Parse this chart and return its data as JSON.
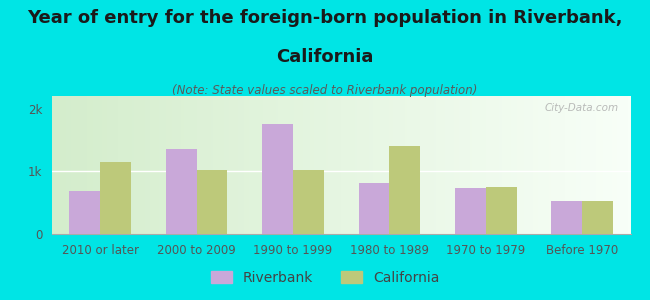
{
  "title_line1": "Year of entry for the foreign-born population in Riverbank,",
  "title_line2": "California",
  "subtitle": "(Note: State values scaled to Riverbank population)",
  "categories": [
    "2010 or later",
    "2000 to 2009",
    "1990 to 1999",
    "1980 to 1989",
    "1970 to 1979",
    "Before 1970"
  ],
  "riverbank_values": [
    680,
    1350,
    1750,
    820,
    730,
    520
  ],
  "california_values": [
    1150,
    1020,
    1020,
    1400,
    750,
    530
  ],
  "riverbank_color": "#c9a8d9",
  "california_color": "#bdc97a",
  "bar_width": 0.32,
  "ylim": [
    0,
    2200
  ],
  "yticks": [
    0,
    1000,
    2000
  ],
  "ytick_labels": [
    "0",
    "1k",
    "2k"
  ],
  "bg_color": "#00e5e5",
  "plot_bg_color": "#e8f5e2",
  "title_fontsize": 13,
  "subtitle_fontsize": 8.5,
  "tick_fontsize": 8.5,
  "legend_fontsize": 10,
  "title_color": "#1a1a1a",
  "subtitle_color": "#5a5a5a",
  "tick_color": "#555555",
  "watermark": "City-Data.com"
}
